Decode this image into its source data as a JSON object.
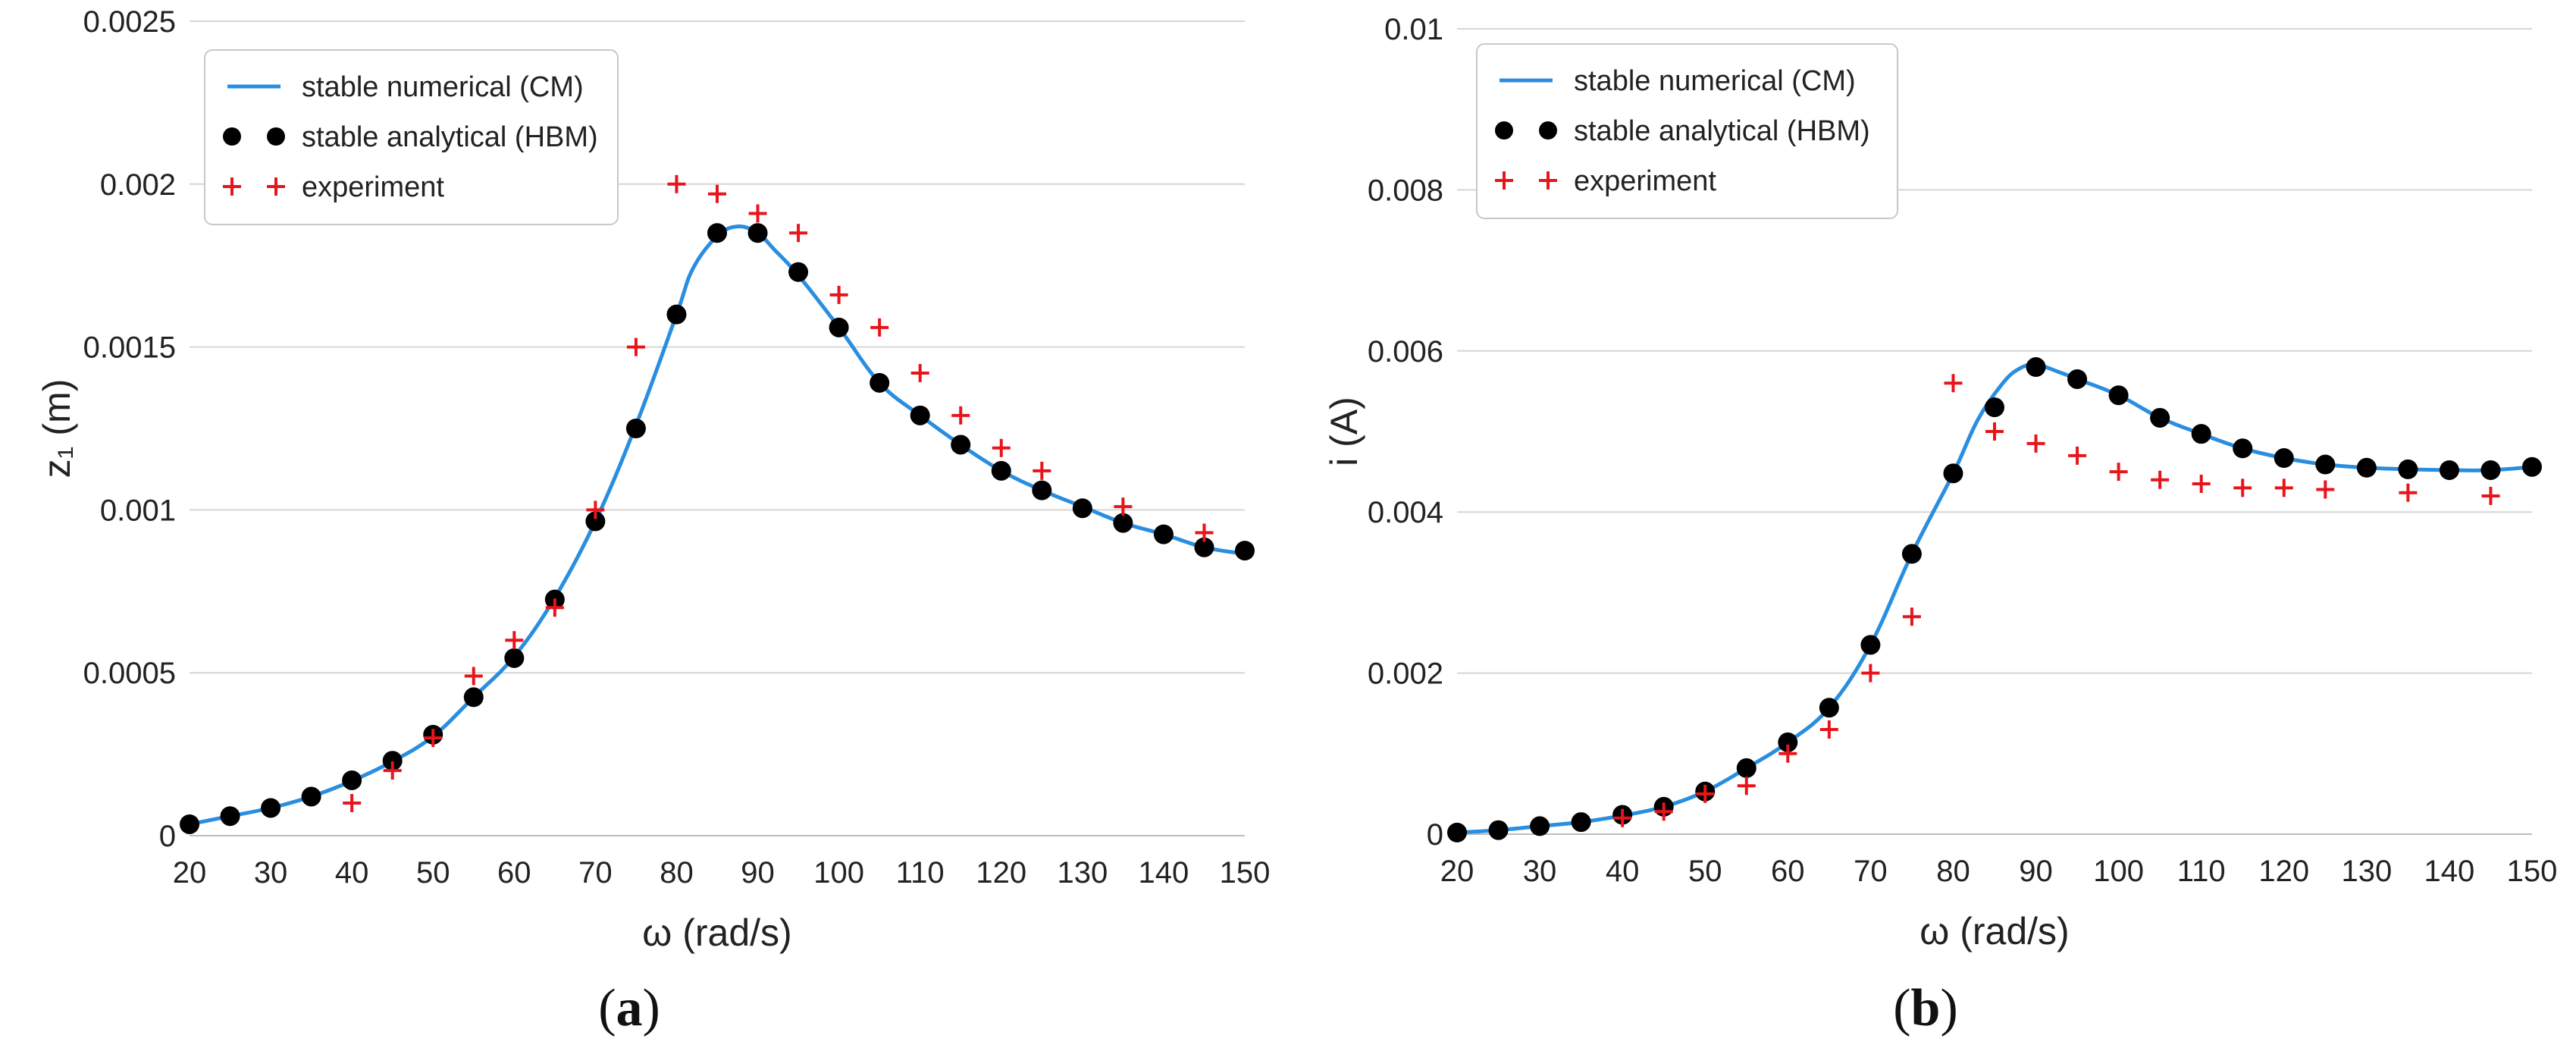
{
  "chart_data": [
    {
      "type": "scatter",
      "panel_label": "a",
      "xlabel": "ω (rad/s)",
      "ylabel": "z₁ (m)",
      "xlim": [
        20,
        150
      ],
      "ylim": [
        0,
        0.0025
      ],
      "xticks": [
        "20",
        "30",
        "40",
        "50",
        "60",
        "70",
        "80",
        "90",
        "100",
        "110",
        "120",
        "130",
        "140",
        "150"
      ],
      "yticks": [
        "0",
        "0.0005",
        "0.001",
        "0.0015",
        "0.002",
        "0.0025"
      ],
      "grid": "horizontal",
      "legend_position": "top-left",
      "series": [
        {
          "name": "stable numerical (CM)",
          "style": "line",
          "color": "#2a8ee0",
          "x": [
            20,
            25,
            30,
            35,
            40,
            45,
            50,
            55,
            60,
            65,
            70,
            75,
            80,
            82,
            85,
            87.5,
            90,
            92,
            95,
            100,
            105,
            110,
            115,
            120,
            125,
            130,
            135,
            140,
            145,
            150
          ],
          "y": [
            3.5e-05,
            6e-05,
            8.5e-05,
            0.00012,
            0.000168,
            0.000228,
            0.000305,
            0.000425,
            0.00055,
            0.00073,
            0.000965,
            0.00126,
            0.0016,
            0.00174,
            0.00184,
            0.00187,
            0.00185,
            0.0018,
            0.00172,
            0.00156,
            0.00139,
            0.00129,
            0.0012,
            0.00112,
            0.00106,
            0.00101,
            0.00096,
            0.000925,
            0.000885,
            0.000865
          ]
        },
        {
          "name": "stable analytical (HBM)",
          "style": "dots",
          "color": "#000000",
          "x": [
            20,
            25,
            30,
            35,
            40,
            45,
            50,
            55,
            60,
            65,
            70,
            75,
            80,
            85,
            90,
            95,
            100,
            105,
            110,
            115,
            120,
            125,
            130,
            135,
            140,
            145,
            150
          ],
          "y": [
            3.5e-05,
            6e-05,
            8.5e-05,
            0.00012,
            0.00017,
            0.00023,
            0.00031,
            0.000425,
            0.000545,
            0.000725,
            0.000965,
            0.00125,
            0.0016,
            0.00185,
            0.00185,
            0.00173,
            0.00156,
            0.00139,
            0.00129,
            0.0012,
            0.00112,
            0.00106,
            0.001005,
            0.00096,
            0.000925,
            0.000885,
            0.000875
          ]
        },
        {
          "name": "experiment",
          "style": "plus",
          "color": "#e8141b",
          "x": [
            40,
            45,
            50,
            55,
            60,
            65,
            70,
            75,
            80,
            85,
            90,
            95,
            100,
            105,
            110,
            115,
            120,
            125,
            135,
            145
          ],
          "y": [
            0.0001,
            0.0002,
            0.0003,
            0.00049,
            0.0006,
            0.0007,
            0.001,
            0.0015,
            0.002,
            0.00197,
            0.00191,
            0.00185,
            0.00166,
            0.00156,
            0.00142,
            0.00129,
            0.00119,
            0.00112,
            0.00101,
            0.00093
          ]
        }
      ]
    },
    {
      "type": "scatter",
      "panel_label": "b",
      "xlabel": "ω (rad/s)",
      "ylabel": "i (A)",
      "xlim": [
        20,
        150
      ],
      "ylim": [
        0,
        0.01
      ],
      "xticks": [
        "20",
        "30",
        "40",
        "50",
        "60",
        "70",
        "80",
        "90",
        "100",
        "110",
        "120",
        "130",
        "140",
        "150"
      ],
      "yticks": [
        "0",
        "0.002",
        "0.004",
        "0.006",
        "0.008",
        "0.01"
      ],
      "grid": "horizontal",
      "legend_position": "top-left",
      "series": [
        {
          "name": "stable numerical (CM)",
          "style": "line",
          "color": "#2a8ee0",
          "x": [
            20,
            25,
            30,
            35,
            40,
            45,
            50,
            55,
            60,
            65,
            70,
            75,
            80,
            83,
            86,
            88,
            90,
            93,
            95,
            100,
            105,
            110,
            115,
            120,
            125,
            130,
            135,
            140,
            145,
            150
          ],
          "y": [
            2e-05,
            5e-05,
            0.0001,
            0.00015,
            0.00023,
            0.00034,
            0.00053,
            0.00082,
            0.00114,
            0.00157,
            0.00235,
            0.00348,
            0.00448,
            0.00515,
            0.0056,
            0.00578,
            0.00583,
            0.00573,
            0.00565,
            0.00545,
            0.00517,
            0.00497,
            0.00479,
            0.00467,
            0.00459,
            0.00455,
            0.00453,
            0.00452,
            0.00452,
            0.00456
          ]
        },
        {
          "name": "stable analytical (HBM)",
          "style": "dots",
          "color": "#000000",
          "x": [
            20,
            25,
            30,
            35,
            40,
            45,
            50,
            55,
            60,
            65,
            70,
            75,
            80,
            85,
            90,
            95,
            100,
            105,
            110,
            115,
            120,
            125,
            130,
            135,
            140,
            145,
            150
          ],
          "y": [
            2e-05,
            5e-05,
            0.0001,
            0.00015,
            0.00024,
            0.00034,
            0.00053,
            0.00082,
            0.00114,
            0.00157,
            0.00235,
            0.00348,
            0.00448,
            0.0053,
            0.0058,
            0.00565,
            0.00545,
            0.00517,
            0.00497,
            0.00479,
            0.00467,
            0.00459,
            0.00455,
            0.00453,
            0.00452,
            0.00452,
            0.00456
          ]
        },
        {
          "name": "experiment",
          "style": "plus",
          "color": "#e8141b",
          "x": [
            40,
            45,
            50,
            55,
            60,
            65,
            70,
            75,
            80,
            85,
            90,
            95,
            100,
            105,
            110,
            115,
            120,
            125,
            135,
            145
          ],
          "y": [
            0.0002,
            0.00028,
            0.0005,
            0.0006,
            0.001,
            0.0013,
            0.002,
            0.0027,
            0.0056,
            0.005,
            0.00485,
            0.0047,
            0.0045,
            0.0044,
            0.00435,
            0.0043,
            0.0043,
            0.00428,
            0.00424,
            0.0042
          ]
        }
      ]
    }
  ]
}
